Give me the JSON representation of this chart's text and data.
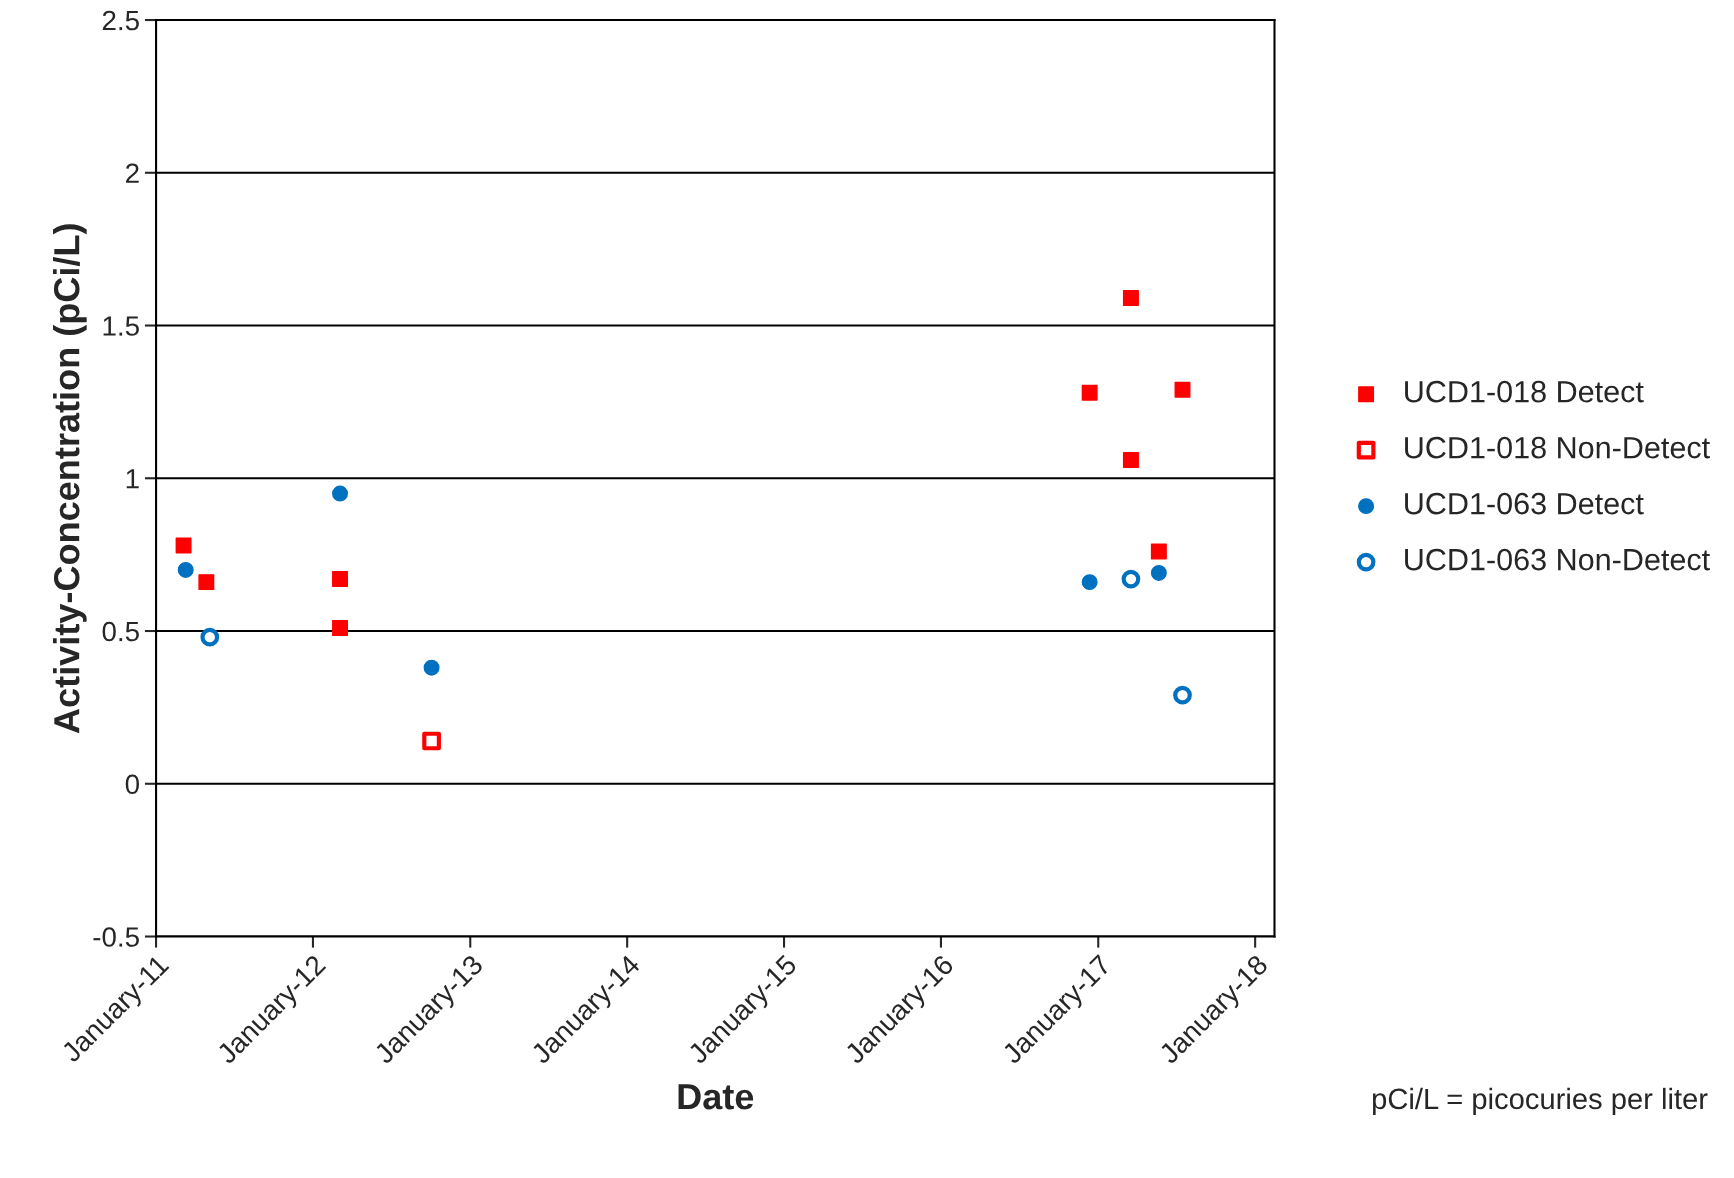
{
  "chart_data": {
    "type": "scatter",
    "xlabel": "Date",
    "ylabel": "Activity-Concentration (pCi/L)",
    "xlim": [
      "2011-01-01",
      "2018-02-15"
    ],
    "xticks": [
      {
        "value": "2011-01-01",
        "label": "January-11"
      },
      {
        "value": "2012-01-01",
        "label": "January-12"
      },
      {
        "value": "2013-01-01",
        "label": "January-13"
      },
      {
        "value": "2014-01-01",
        "label": "January-14"
      },
      {
        "value": "2015-01-01",
        "label": "January-15"
      },
      {
        "value": "2016-01-01",
        "label": "January-16"
      },
      {
        "value": "2017-01-01",
        "label": "January-17"
      },
      {
        "value": "2018-01-01",
        "label": "January-18"
      }
    ],
    "ylim": [
      -0.5,
      2.5
    ],
    "yticks": [
      -0.5,
      0,
      0.5,
      1,
      1.5,
      2,
      2.5
    ],
    "grid": "y",
    "legend": "right",
    "series": [
      {
        "name": "UCD1-018 Detect",
        "color": "#ff0000",
        "marker": "square",
        "x": [
          "2011-03-06",
          "2011-04-28",
          "2012-03-04",
          "2012-03-04",
          "2016-12-12",
          "2017-03-18",
          "2017-03-18",
          "2017-07-16",
          "2017-05-22"
        ],
        "values": [
          0.78,
          0.66,
          0.67,
          0.51,
          1.28,
          1.59,
          1.06,
          1.29,
          0.76
        ]
      },
      {
        "name": "UCD1-018 Non-Detect",
        "color": "#ff0000",
        "marker": "square",
        "x": [
          "2012-10-03"
        ],
        "values": [
          0.14
        ]
      },
      {
        "name": "UCD1-063 Detect",
        "color": "#0070c0",
        "marker": "circle",
        "x": [
          "2011-03-11",
          "2012-03-04",
          "2012-10-03",
          "2016-12-12",
          "2017-05-22"
        ],
        "values": [
          0.7,
          0.95,
          0.38,
          0.66,
          0.69
        ]
      },
      {
        "name": "UCD1-063 Non-Detect",
        "color": "#0070c0",
        "marker": "circle",
        "x": [
          "2011-05-06",
          "2017-03-18",
          "2017-07-16"
        ],
        "values": [
          0.48,
          0.67,
          0.29
        ]
      }
    ],
    "annotations": [
      "pCi/L = picocuries per liter"
    ]
  }
}
